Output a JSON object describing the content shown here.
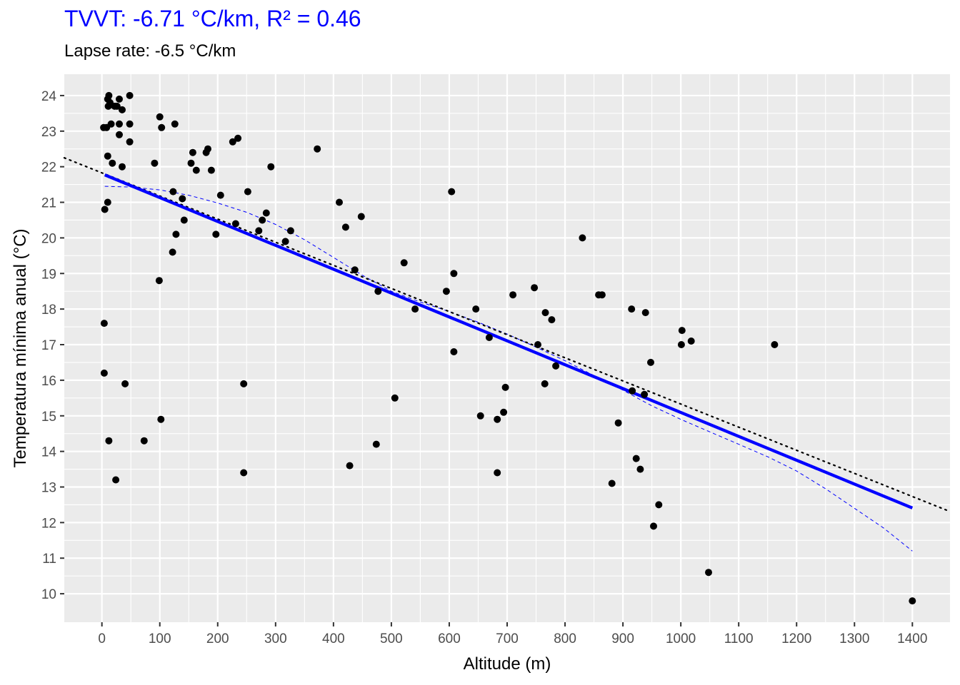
{
  "title": "TVVT: -6.71 °C/km, R² = 0.46",
  "subtitle": "Lapse rate: -6.5 °C/km",
  "colors": {
    "title": "#0000ff",
    "panel_background": "#ebebeb",
    "grid": "#ffffff",
    "points": "#000000",
    "regression_line": "#0000ff",
    "reference_line": "#000000"
  },
  "chart_data": {
    "type": "scatter",
    "xlabel": "Altitude (m)",
    "ylabel": "Temperatura mínima anual (°C)",
    "xlim": [
      -65,
      1465
    ],
    "ylim": [
      9.2,
      24.6
    ],
    "x_ticks": [
      0,
      100,
      200,
      300,
      400,
      500,
      600,
      700,
      800,
      900,
      1000,
      1100,
      1200,
      1300,
      1400
    ],
    "y_ticks": [
      10,
      11,
      12,
      13,
      14,
      15,
      16,
      17,
      18,
      19,
      20,
      21,
      22,
      23,
      24
    ],
    "grid": true,
    "legend": "none",
    "points": [
      [
        3,
        23.1
      ],
      [
        8,
        23.1
      ],
      [
        12,
        24.0
      ],
      [
        10,
        23.9
      ],
      [
        11,
        23.7
      ],
      [
        14,
        23.8
      ],
      [
        22,
        23.7
      ],
      [
        26,
        23.7
      ],
      [
        30,
        23.9
      ],
      [
        35,
        23.6
      ],
      [
        16,
        23.2
      ],
      [
        30,
        23.2
      ],
      [
        48,
        23.2
      ],
      [
        30,
        22.9
      ],
      [
        48,
        22.7
      ],
      [
        48,
        24.0
      ],
      [
        10,
        22.3
      ],
      [
        18,
        22.1
      ],
      [
        35,
        22.0
      ],
      [
        10,
        21.0
      ],
      [
        5,
        20.8
      ],
      [
        4,
        17.6
      ],
      [
        4,
        16.2
      ],
      [
        40,
        15.9
      ],
      [
        12,
        14.3
      ],
      [
        24,
        13.2
      ],
      [
        100,
        23.4
      ],
      [
        103,
        23.1
      ],
      [
        126,
        23.2
      ],
      [
        91,
        22.1
      ],
      [
        123,
        21.3
      ],
      [
        139,
        21.1
      ],
      [
        142,
        20.5
      ],
      [
        128,
        20.1
      ],
      [
        122,
        19.6
      ],
      [
        99,
        18.8
      ],
      [
        102,
        14.9
      ],
      [
        73,
        14.3
      ],
      [
        157,
        22.4
      ],
      [
        154,
        22.1
      ],
      [
        163,
        21.9
      ],
      [
        180,
        22.4
      ],
      [
        183,
        22.5
      ],
      [
        189,
        21.9
      ],
      [
        205,
        21.2
      ],
      [
        197,
        20.1
      ],
      [
        226,
        22.7
      ],
      [
        235,
        22.8
      ],
      [
        252,
        21.3
      ],
      [
        231,
        20.4
      ],
      [
        277,
        20.5
      ],
      [
        284,
        20.7
      ],
      [
        271,
        20.2
      ],
      [
        292,
        22.0
      ],
      [
        317,
        19.9
      ],
      [
        326,
        20.2
      ],
      [
        245,
        15.9
      ],
      [
        245,
        13.4
      ],
      [
        372,
        22.5
      ],
      [
        410,
        21.0
      ],
      [
        421,
        20.3
      ],
      [
        448,
        20.6
      ],
      [
        437,
        19.1
      ],
      [
        477,
        18.5
      ],
      [
        506,
        15.5
      ],
      [
        474,
        14.2
      ],
      [
        428,
        13.6
      ],
      [
        522,
        19.3
      ],
      [
        541,
        18.0
      ],
      [
        604,
        21.3
      ],
      [
        608,
        19.0
      ],
      [
        595,
        18.5
      ],
      [
        608,
        16.8
      ],
      [
        646,
        18.0
      ],
      [
        669,
        17.2
      ],
      [
        654,
        15.0
      ],
      [
        683,
        14.9
      ],
      [
        683,
        13.4
      ],
      [
        697,
        15.8
      ],
      [
        694,
        15.1
      ],
      [
        710,
        18.4
      ],
      [
        747,
        18.6
      ],
      [
        753,
        17.0
      ],
      [
        766,
        17.9
      ],
      [
        777,
        17.7
      ],
      [
        784,
        16.4
      ],
      [
        765,
        15.9
      ],
      [
        830,
        20.0
      ],
      [
        858,
        18.4
      ],
      [
        864,
        18.4
      ],
      [
        915,
        18.0
      ],
      [
        939,
        17.9
      ],
      [
        948,
        16.5
      ],
      [
        916,
        15.7
      ],
      [
        937,
        15.6
      ],
      [
        892,
        14.8
      ],
      [
        923,
        13.8
      ],
      [
        930,
        13.5
      ],
      [
        881,
        13.1
      ],
      [
        962,
        12.5
      ],
      [
        953,
        11.9
      ],
      [
        1001,
        17.0
      ],
      [
        1002,
        17.4
      ],
      [
        1018,
        17.1
      ],
      [
        1048,
        10.6
      ],
      [
        1162,
        17.0
      ],
      [
        1400,
        9.8
      ]
    ],
    "regression_line": {
      "x": [
        5,
        1400
      ],
      "y": [
        21.77,
        12.41
      ]
    },
    "reference_line": {
      "x": [
        -65,
        1465
      ],
      "y": [
        22.25,
        12.31
      ]
    },
    "smooth_curve": {
      "x": [
        5,
        50,
        100,
        150,
        200,
        250,
        300,
        350,
        400,
        450,
        500,
        550,
        600,
        650,
        700,
        750,
        800,
        850,
        900,
        950,
        1000,
        1050,
        1100,
        1150,
        1200,
        1250,
        1300,
        1350,
        1400
      ],
      "y": [
        21.45,
        21.43,
        21.35,
        21.2,
        20.98,
        20.72,
        20.38,
        19.95,
        19.45,
        18.95,
        18.5,
        18.2,
        17.93,
        17.63,
        17.3,
        16.93,
        16.55,
        16.13,
        15.72,
        15.28,
        14.9,
        14.55,
        14.2,
        13.85,
        13.45,
        12.95,
        12.4,
        11.85,
        11.2
      ]
    }
  }
}
